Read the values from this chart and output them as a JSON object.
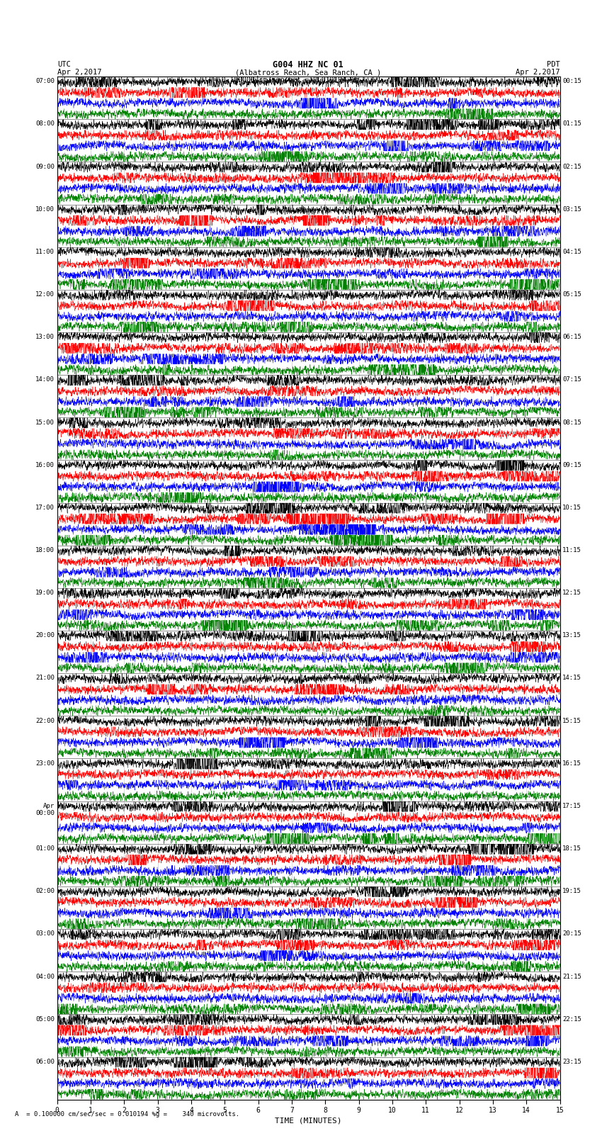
{
  "title_line1": "G004 HHZ NC 01",
  "title_line2": "(Albatross Reach, Sea Ranch, CA )",
  "scale_label": "= 0.100000 cm/sec/sec = 0.010194 %g",
  "bottom_label": "A  = 0.100000 cm/sec/sec = 0.010194 %g =    340 microvolts.",
  "xlabel": "TIME (MINUTES)",
  "utc_label": "UTC",
  "utc_date": "Apr 2,2017",
  "pdt_label": "PDT",
  "pdt_date": "Apr 2,2017",
  "left_times": [
    "07:00",
    "08:00",
    "09:00",
    "10:00",
    "11:00",
    "12:00",
    "13:00",
    "14:00",
    "15:00",
    "16:00",
    "17:00",
    "18:00",
    "19:00",
    "20:00",
    "21:00",
    "22:00",
    "23:00",
    "Apr",
    "01:00",
    "02:00",
    "03:00",
    "04:00",
    "05:00",
    "06:00"
  ],
  "left_times_sub": [
    "",
    "",
    "",
    "",
    "",
    "",
    "",
    "",
    "",
    "",
    "",
    "",
    "",
    "",
    "",
    "",
    "",
    "00:00",
    "",
    "",
    "",
    "",
    "",
    ""
  ],
  "right_times": [
    "00:15",
    "01:15",
    "02:15",
    "03:15",
    "04:15",
    "05:15",
    "06:15",
    "07:15",
    "08:15",
    "09:15",
    "10:15",
    "11:15",
    "12:15",
    "13:15",
    "14:15",
    "15:15",
    "16:15",
    "17:15",
    "18:15",
    "19:15",
    "20:15",
    "21:15",
    "22:15",
    "23:15"
  ],
  "n_rows": 24,
  "traces_per_row": 4,
  "colors": [
    "black",
    "red",
    "blue",
    "green"
  ],
  "bg_color": "white",
  "plot_bg": "white",
  "xmin": 0,
  "xmax": 15,
  "xticks": [
    0,
    1,
    2,
    3,
    4,
    5,
    6,
    7,
    8,
    9,
    10,
    11,
    12,
    13,
    14,
    15
  ],
  "noise_amplitude": 0.35,
  "noise_seed": 42,
  "event_row": 10,
  "n_points": 3000
}
